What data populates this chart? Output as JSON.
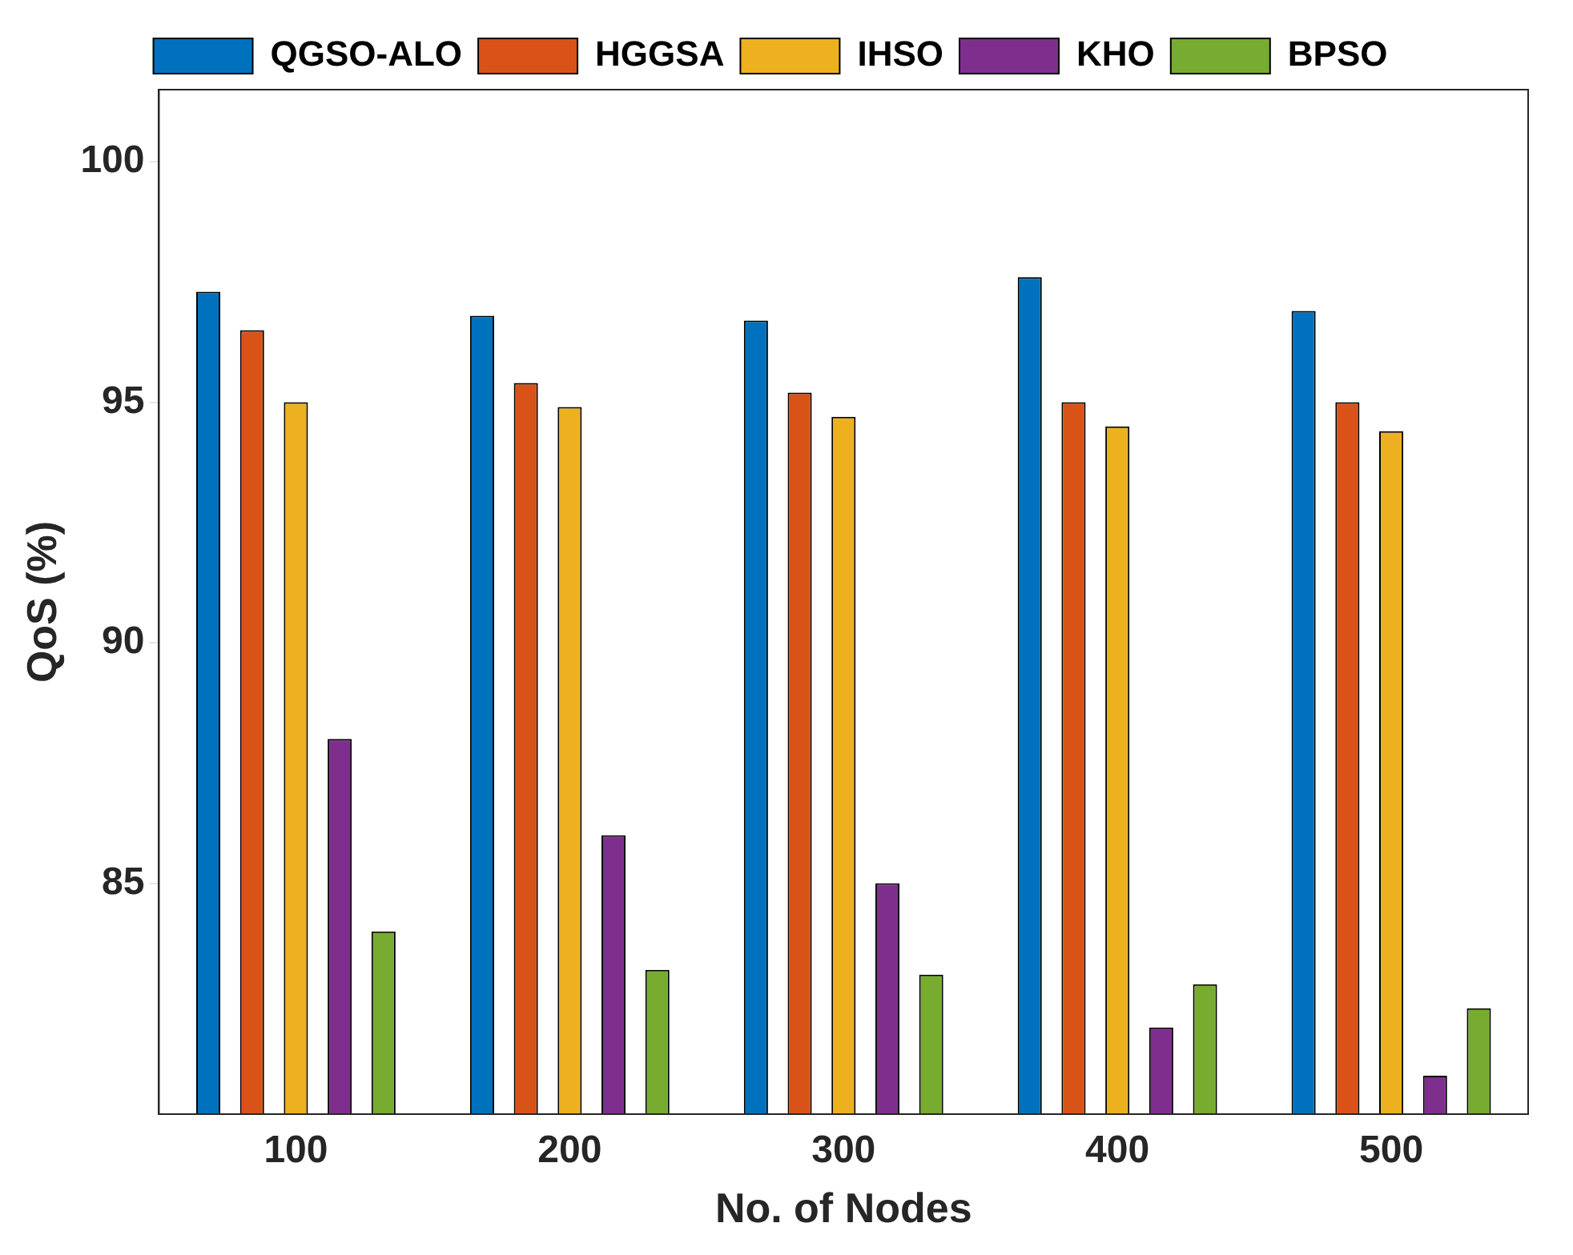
{
  "chart_data": {
    "type": "bar",
    "xlabel": "No. of Nodes",
    "ylabel": "QoS (%)",
    "categories": [
      "100",
      "200",
      "300",
      "400",
      "500"
    ],
    "series": [
      {
        "name": "QGSO-ALO",
        "color": "#0072bd",
        "values": [
          97.3,
          96.8,
          96.7,
          97.6,
          96.9
        ]
      },
      {
        "name": "HGGSA",
        "color": "#d95319",
        "values": [
          96.5,
          95.4,
          95.2,
          95.0,
          95.0
        ]
      },
      {
        "name": "IHSO",
        "color": "#edb120",
        "values": [
          95.0,
          94.9,
          94.7,
          94.5,
          94.4
        ]
      },
      {
        "name": "KHO",
        "color": "#7e2f8e",
        "values": [
          88.0,
          86.0,
          85.0,
          82.0,
          81.0
        ]
      },
      {
        "name": "BPSO",
        "color": "#77ac30",
        "values": [
          84.0,
          83.2,
          83.1,
          82.9,
          82.4
        ]
      }
    ],
    "ylim": [
      80.2,
      101.5
    ],
    "yticks": [
      85,
      90,
      95,
      100
    ],
    "grid": false,
    "legend": "top"
  }
}
